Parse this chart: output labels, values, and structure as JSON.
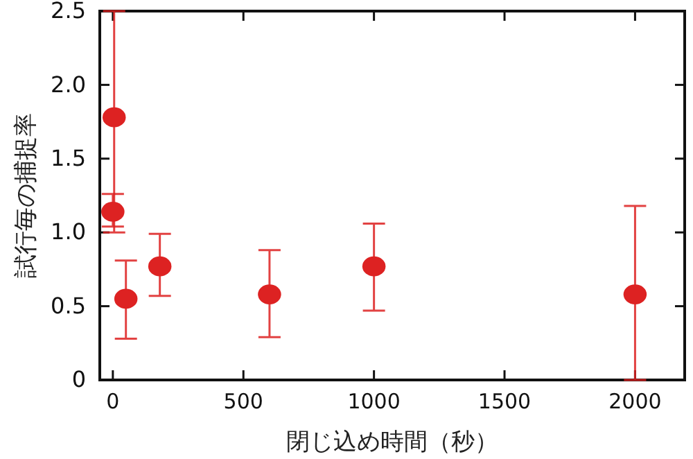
{
  "chart_data": {
    "type": "scatter",
    "xlabel": "閉じ込め時間（秒）",
    "ylabel": "試行毎の捕捉率",
    "x": [
      5,
      0,
      50,
      180,
      600,
      1000,
      2000
    ],
    "series": [
      {
        "color": "#dd2222",
        "values": [
          1.78,
          1.14,
          0.55,
          0.77,
          0.58,
          0.77,
          0.58
        ],
        "errors": [
          [
            1.0,
            2.5
          ],
          [
            1.04,
            1.26
          ],
          [
            0.28,
            0.81
          ],
          [
            0.57,
            0.99
          ],
          [
            0.29,
            0.88
          ],
          [
            0.47,
            1.06
          ],
          [
            0,
            1.18
          ]
        ]
      }
    ],
    "xlim": [
      -50,
      2190
    ],
    "xticks": [
      0,
      500,
      1000,
      1500,
      2000
    ],
    "ylim": [
      0,
      2.5
    ],
    "yticks": [
      0,
      {
        "value": 0.5,
        "label": "0.5"
      },
      {
        "value": 1,
        "label": "1.0"
      },
      {
        "value": 1.5,
        "label": "1.5"
      },
      {
        "value": 2,
        "label": "2.0"
      },
      {
        "value": 2.5,
        "label": "2.5"
      }
    ],
    "marker": "circle",
    "grid": false
  }
}
